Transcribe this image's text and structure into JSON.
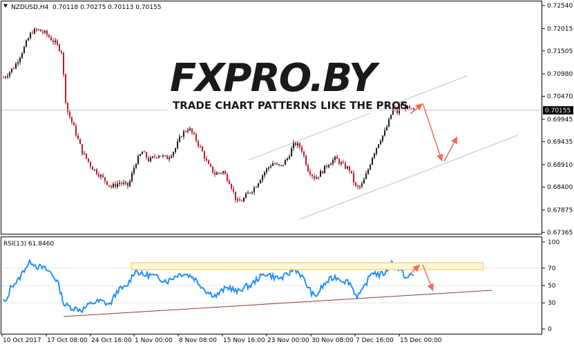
{
  "header": {
    "symbol_info": "NZDUSD,H4",
    "ohlc": "0.70118 0.70275 0.70113 0.70155",
    "current_price_label": "0.70155"
  },
  "watermark": {
    "logo_text": "FXPRO.BY",
    "tagline": "TRADE CHART PATTERNS LIKE THE PROS"
  },
  "colors": {
    "bull": "#1a1a1a",
    "bear": "#c0152b",
    "rsi_line": "#1e90ff",
    "channel": "#a9c6dc",
    "rsi_trend": "#8b3a3a",
    "arrow": "#f26b5b",
    "rsi_zone": "#f5c542"
  },
  "rsi": {
    "label": "RSI(13) 61.8460",
    "levels": [
      "100",
      "70",
      "50",
      "30",
      "0"
    ]
  },
  "chart_data": [
    {
      "type": "candlestick",
      "title": "NZDUSD,H4",
      "ylim": [
        0.67365,
        0.7254
      ],
      "y_ticks": [
        "0.72540",
        "0.72015",
        "0.71505",
        "0.70980",
        "0.70470",
        "0.69945",
        "0.69435",
        "0.68910",
        "0.68400",
        "0.67875",
        "0.67365"
      ],
      "x_ticks": [
        "10 Oct 2017",
        "17 Oct 08:00",
        "24 Oct 16:00",
        "1 Nov 00:00",
        "8 Nov 08:00",
        "15 Nov 16:00",
        "23 Nov 00:00",
        "30 Nov 08:00",
        "7 Dec 16:00",
        "15 Dec 00:00"
      ],
      "last_close": 0.70155,
      "close_path": [
        [
          0,
          0.7085
        ],
        [
          8,
          0.7095
        ],
        [
          20,
          0.7115
        ],
        [
          33,
          0.7155
        ],
        [
          45,
          0.7195
        ],
        [
          55,
          0.7198
        ],
        [
          65,
          0.719
        ],
        [
          78,
          0.717
        ],
        [
          88,
          0.715
        ],
        [
          95,
          0.702
        ],
        [
          105,
          0.698
        ],
        [
          118,
          0.692
        ],
        [
          132,
          0.6885
        ],
        [
          148,
          0.686
        ],
        [
          160,
          0.684
        ],
        [
          172,
          0.685
        ],
        [
          185,
          0.6842
        ],
        [
          195,
          0.6895
        ],
        [
          205,
          0.692
        ],
        [
          215,
          0.69
        ],
        [
          228,
          0.6915
        ],
        [
          240,
          0.6905
        ],
        [
          252,
          0.6925
        ],
        [
          262,
          0.696
        ],
        [
          272,
          0.6975
        ],
        [
          282,
          0.695
        ],
        [
          292,
          0.692
        ],
        [
          300,
          0.689
        ],
        [
          310,
          0.687
        ],
        [
          322,
          0.6875
        ],
        [
          332,
          0.685
        ],
        [
          342,
          0.6805
        ],
        [
          350,
          0.681
        ],
        [
          358,
          0.6825
        ],
        [
          368,
          0.684
        ],
        [
          380,
          0.687
        ],
        [
          393,
          0.6895
        ],
        [
          405,
          0.6885
        ],
        [
          415,
          0.6905
        ],
        [
          425,
          0.694
        ],
        [
          435,
          0.693
        ],
        [
          445,
          0.688
        ],
        [
          455,
          0.686
        ],
        [
          465,
          0.6875
        ],
        [
          475,
          0.6895
        ],
        [
          485,
          0.6905
        ],
        [
          495,
          0.689
        ],
        [
          505,
          0.688
        ],
        [
          515,
          0.6835
        ],
        [
          523,
          0.6845
        ],
        [
          530,
          0.687
        ],
        [
          538,
          0.691
        ],
        [
          548,
          0.6945
        ],
        [
          556,
          0.6965
        ],
        [
          562,
          0.699
        ],
        [
          568,
          0.702
        ],
        [
          574,
          0.701
        ],
        [
          580,
          0.703
        ],
        [
          588,
          0.702
        ],
        [
          594,
          0.7015
        ]
      ]
    },
    {
      "type": "line",
      "title": "RSI(13) 61.8460",
      "ylim": [
        0,
        100
      ],
      "y_ticks": [
        "100",
        "70",
        "50",
        "30",
        "0"
      ],
      "last_value": 61.846,
      "values_path": [
        [
          0,
          35
        ],
        [
          8,
          30
        ],
        [
          15,
          50
        ],
        [
          25,
          55
        ],
        [
          35,
          70
        ],
        [
          45,
          78
        ],
        [
          52,
          72
        ],
        [
          62,
          70
        ],
        [
          72,
          65
        ],
        [
          82,
          55
        ],
        [
          92,
          28
        ],
        [
          105,
          24
        ],
        [
          118,
          22
        ],
        [
          132,
          30
        ],
        [
          145,
          32
        ],
        [
          158,
          28
        ],
        [
          170,
          45
        ],
        [
          182,
          48
        ],
        [
          195,
          68
        ],
        [
          205,
          62
        ],
        [
          218,
          62
        ],
        [
          230,
          58
        ],
        [
          242,
          55
        ],
        [
          255,
          62
        ],
        [
          265,
          64
        ],
        [
          278,
          60
        ],
        [
          290,
          50
        ],
        [
          300,
          42
        ],
        [
          312,
          38
        ],
        [
          322,
          45
        ],
        [
          332,
          48
        ],
        [
          342,
          42
        ],
        [
          352,
          48
        ],
        [
          362,
          50
        ],
        [
          372,
          58
        ],
        [
          385,
          64
        ],
        [
          395,
          60
        ],
        [
          405,
          58
        ],
        [
          415,
          62
        ],
        [
          425,
          70
        ],
        [
          435,
          62
        ],
        [
          445,
          48
        ],
        [
          455,
          36
        ],
        [
          465,
          48
        ],
        [
          475,
          56
        ],
        [
          485,
          60
        ],
        [
          495,
          56
        ],
        [
          505,
          54
        ],
        [
          515,
          38
        ],
        [
          523,
          42
        ],
        [
          530,
          54
        ],
        [
          538,
          66
        ],
        [
          548,
          62
        ],
        [
          558,
          65
        ],
        [
          565,
          77
        ],
        [
          572,
          72
        ],
        [
          580,
          66
        ],
        [
          588,
          58
        ],
        [
          594,
          62
        ]
      ]
    }
  ]
}
